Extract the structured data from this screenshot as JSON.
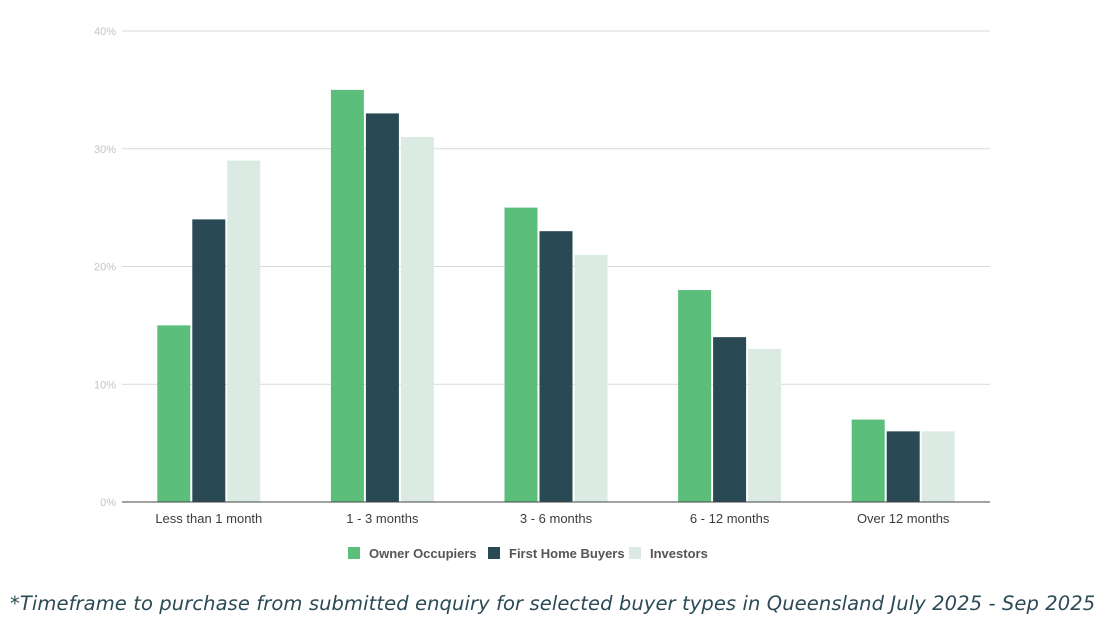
{
  "chart_data": {
    "type": "bar",
    "title": "",
    "xlabel": "",
    "ylabel": "",
    "categories": [
      "Less than 1 month",
      "1 - 3 months",
      "3 - 6 months",
      "6 - 12 months",
      "Over 12 months"
    ],
    "series": [
      {
        "name": "Owner Occupiers",
        "color": "#5bbf7b",
        "values": [
          15,
          35,
          25,
          18,
          7
        ]
      },
      {
        "name": "First Home Buyers",
        "color": "#294a55",
        "values": [
          24,
          33,
          23,
          14,
          6
        ]
      },
      {
        "name": "Investors",
        "color": "#dbebe3",
        "values": [
          29,
          31,
          21,
          13,
          6
        ]
      }
    ],
    "y_ticks": [
      {
        "value": 0,
        "label": "0%"
      },
      {
        "value": 10,
        "label": "10%"
      },
      {
        "value": 20,
        "label": "20%"
      },
      {
        "value": 30,
        "label": "30%"
      },
      {
        "value": 40,
        "label": "40%"
      }
    ],
    "ylim": [
      0,
      40
    ],
    "y_unit": "%",
    "grid": true,
    "legend_position": "bottom-center",
    "colors": {
      "grid": "#d9d9d9",
      "axis": "#444444",
      "tick_label": "#c4c4c4",
      "category_label": "#3c3c3c",
      "legend_text": "#555555"
    }
  },
  "footnote": "*Timeframe to purchase from submitted enquiry for selected buyer types in Queensland July 2025 - Sep 2025"
}
